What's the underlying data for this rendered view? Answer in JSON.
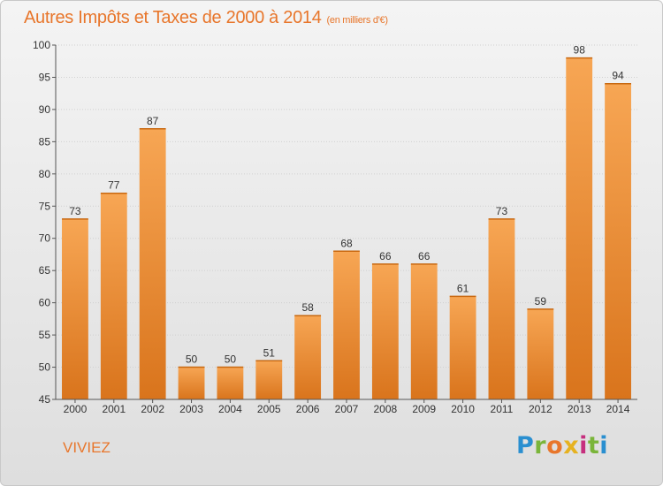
{
  "title": "Autres Impôts et Taxes de 2000 à 2014",
  "subtitle": "(en milliers d'€)",
  "commune": "VIVIEZ",
  "logo": {
    "letters": [
      "P",
      "r",
      "o",
      "x",
      "i",
      "t",
      "i"
    ],
    "colors": [
      "#2a8fd0",
      "#7ab53a",
      "#e8762b",
      "#e6b220",
      "#c62f7e",
      "#7ab53a",
      "#2a8fd0"
    ]
  },
  "colors": {
    "accent": "#e8762b",
    "bar_top": "#f7a654",
    "bar_bottom": "#d9741c",
    "grid": "#d0d0d0",
    "axis_text": "#333333"
  },
  "chart_data": {
    "type": "bar",
    "categories": [
      "2000",
      "2001",
      "2002",
      "2003",
      "2004",
      "2005",
      "2006",
      "2007",
      "2008",
      "2009",
      "2010",
      "2011",
      "2012",
      "2013",
      "2014"
    ],
    "values": [
      73,
      77,
      87,
      50,
      50,
      51,
      58,
      68,
      66,
      66,
      61,
      73,
      59,
      98,
      94
    ],
    "ylim": [
      45,
      100
    ],
    "yticks": [
      45,
      50,
      55,
      60,
      65,
      70,
      75,
      80,
      85,
      90,
      95,
      100
    ],
    "data_labels": true,
    "grid": true
  }
}
